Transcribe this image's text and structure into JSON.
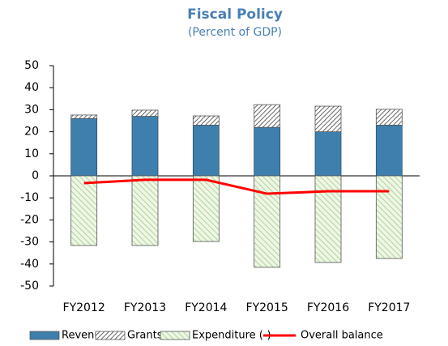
{
  "chart_data": {
    "type": "bar",
    "title": "Fiscal Policy",
    "subtitle": "(Percent of GDP)",
    "categories": [
      "FY2012",
      "FY2013",
      "FY2014",
      "FY2015",
      "FY2016",
      "FY2017"
    ],
    "series": [
      {
        "name": "Revenue",
        "color": "#3e7fad",
        "values": [
          26,
          27,
          23,
          22,
          20,
          23
        ]
      },
      {
        "name": "Grants",
        "color": "#404040",
        "values": [
          1.6,
          2.8,
          4.2,
          10.3,
          11.6,
          7.2
        ]
      },
      {
        "name": "Expenditure (-)",
        "color": "#a9d18e",
        "values": [
          -31.6,
          -31.6,
          -29.8,
          -41.5,
          -39.3,
          -37.5
        ]
      },
      {
        "name": "Overall balance",
        "color": "#ff0000",
        "type": "line",
        "values": [
          -3.3,
          -1.8,
          -1.8,
          -8.1,
          -7,
          -7
        ]
      }
    ],
    "ylim": [
      -50,
      50
    ],
    "yticks": [
      -50,
      -40,
      -30,
      -20,
      -10,
      0,
      10,
      20,
      30,
      40,
      50
    ],
    "legend": "bottom"
  }
}
